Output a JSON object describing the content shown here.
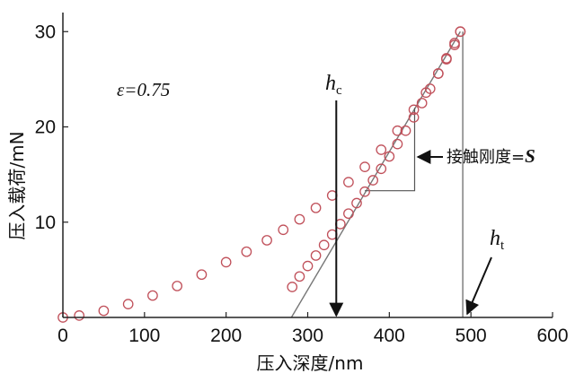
{
  "chart_data": {
    "type": "scatter",
    "xlabel": "压入深度/nm",
    "ylabel": "压入载荷/mN",
    "xlim": [
      0,
      600
    ],
    "ylim": [
      0,
      32
    ],
    "xticks": [
      "0",
      "100",
      "200",
      "300",
      "400",
      "500",
      "600"
    ],
    "yticks": [
      "10",
      "20",
      "30"
    ],
    "grid": false,
    "marker_color": "#c0505a",
    "series": [
      {
        "part": "loading",
        "x": [
          0,
          20,
          50,
          80,
          110,
          140,
          170,
          200,
          225,
          250,
          270,
          290,
          310,
          330,
          350,
          370,
          390,
          410,
          430,
          445,
          460,
          470,
          480,
          487
        ],
        "y": [
          0,
          0.2,
          0.7,
          1.4,
          2.3,
          3.3,
          4.5,
          5.8,
          6.9,
          8.1,
          9.2,
          10.3,
          11.5,
          12.8,
          14.2,
          15.8,
          17.6,
          19.6,
          21.8,
          23.6,
          25.6,
          27.1,
          28.6,
          30.0
        ]
      },
      {
        "part": "unloading",
        "x": [
          487,
          480,
          470,
          460,
          450,
          440,
          430,
          420,
          410,
          400,
          390,
          380,
          370,
          360,
          350,
          340,
          330,
          320,
          310,
          300,
          290,
          281
        ],
        "y": [
          30.0,
          28.8,
          27.2,
          25.6,
          24.0,
          22.5,
          21.0,
          19.6,
          18.2,
          16.9,
          15.6,
          14.4,
          13.2,
          12.0,
          10.9,
          9.8,
          8.7,
          7.6,
          6.5,
          5.4,
          4.3,
          3.2
        ]
      }
    ],
    "tangent_line": {
      "x": [
        280,
        487
      ],
      "y": [
        0,
        30
      ]
    },
    "slope_triangle": {
      "x1": 370,
      "x2": 431,
      "y1": 13.3,
      "y2": 22.0
    },
    "hc_x": 335,
    "ht_x": 490,
    "annotations": {
      "epsilon": "ε=0.75",
      "hc": "h",
      "hc_sub": "c",
      "ht": "h",
      "ht_sub": "t",
      "stiffness": "接触刚度=",
      "stiffness_symbol": "S"
    }
  }
}
